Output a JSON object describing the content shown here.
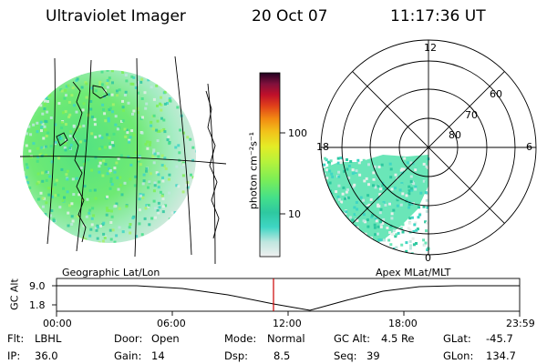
{
  "header": {
    "instrument": "Ultraviolet Imager",
    "date": "20 Oct 07",
    "time": "11:17:36 UT"
  },
  "geo_panel": {
    "caption": "Geographic Lat/Lon"
  },
  "polar_panel": {
    "caption": "Apex MLat/MLT",
    "mlt_labels": [
      "12",
      "18",
      "6",
      "0"
    ],
    "mlat_labels": [
      "60",
      "70",
      "80"
    ]
  },
  "colorbar": {
    "unit_label": "photon cm⁻²s⁻¹",
    "ticks": [
      "100",
      "10"
    ],
    "scale": "log",
    "colors": [
      "#f0f0f0",
      "#bfe6df",
      "#3fd6c4",
      "#2ec8a0",
      "#44e08a",
      "#7cee56",
      "#b8f23a",
      "#e4ec26",
      "#f2c21a",
      "#f28a12",
      "#e0401a",
      "#c0102a",
      "#80103c",
      "#200020"
    ]
  },
  "altitude_strip": {
    "axis_label": "GC Alt",
    "y_ticks": [
      "9.0",
      "1.8"
    ],
    "x_ticks": [
      "00:00",
      "06:00",
      "12:00",
      "18:00",
      "23:59"
    ],
    "current_time_marker": "11:17:36"
  },
  "info": {
    "flt": {
      "label": "Flt:",
      "value": "LBHL"
    },
    "ip": {
      "label": "IP:",
      "value": "36.0"
    },
    "door": {
      "label": "Door:",
      "value": "Open"
    },
    "gain": {
      "label": "Gain:",
      "value": "14"
    },
    "mode": {
      "label": "Mode:",
      "value": "Normal"
    },
    "dsp": {
      "label": "Dsp:",
      "value": "8.5"
    },
    "gcalt": {
      "label": "GC Alt:",
      "value": "4.5 Re"
    },
    "seq": {
      "label": "Seq:",
      "value": "39"
    },
    "glat": {
      "label": "GLat:",
      "value": "-45.7"
    },
    "glon": {
      "label": "GLon:",
      "value": "134.7"
    }
  },
  "colors": {
    "background": "#ffffff",
    "ink": "#000000",
    "marker": "#cc0000"
  }
}
